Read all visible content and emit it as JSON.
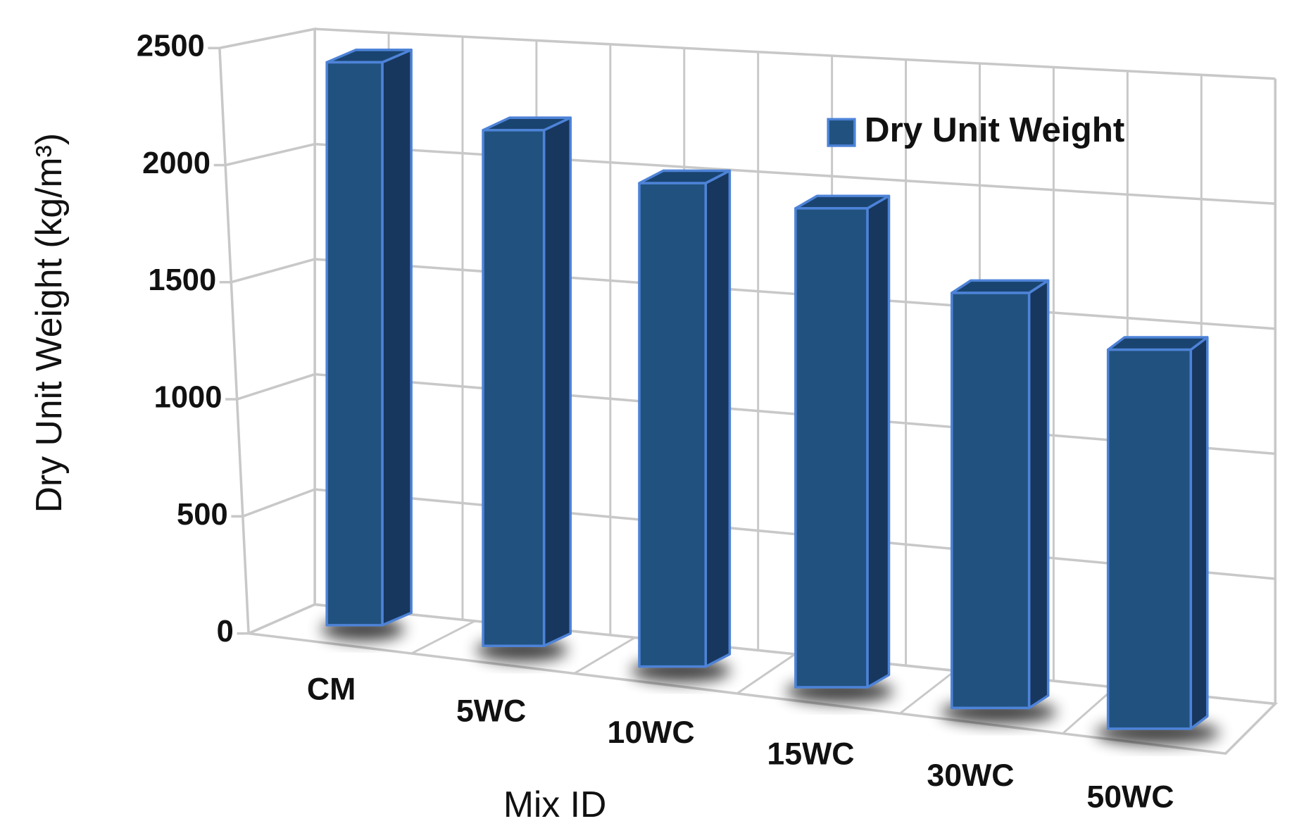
{
  "chart_data": {
    "type": "bar3d",
    "x_label": "Mix ID",
    "y_label": "Dry Unit Weight (kg/m³)",
    "categories": [
      "CM",
      "5WC",
      "10WC",
      "15WC",
      "30WC",
      "50WC"
    ],
    "series": [
      {
        "name": "Dry Unit Weight",
        "color": "#21527f",
        "values": [
          2440,
          2200,
          2030,
          1980,
          1690,
          1520
        ]
      }
    ],
    "ylim": [
      0,
      2500
    ],
    "yticks": [
      0,
      500,
      1000,
      1500,
      2000,
      2500
    ],
    "grid": true,
    "legend": "upper right"
  }
}
